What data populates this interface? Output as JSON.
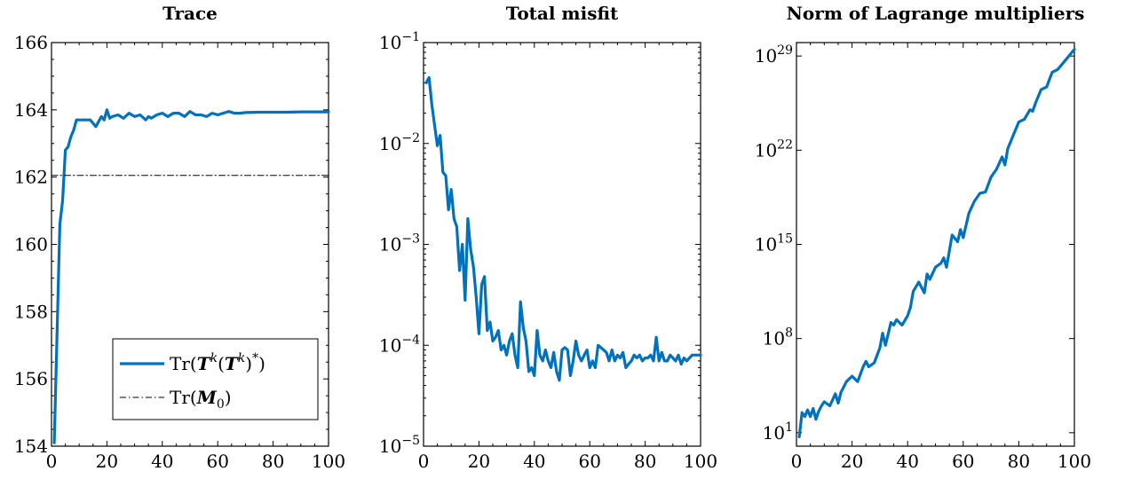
{
  "chart_data": [
    {
      "type": "line",
      "title": "Trace",
      "xlim": [
        0,
        100
      ],
      "ylim": [
        154,
        166
      ],
      "yscale": "linear",
      "x_ticks": [
        0,
        20,
        40,
        60,
        80,
        100
      ],
      "y_ticks": [
        154,
        156,
        158,
        160,
        162,
        164,
        166
      ],
      "legend": "bottom-right",
      "series": [
        {
          "name": "Tr(T^k(T^k)^*)",
          "color": "#0072BD",
          "style": "solid",
          "x": [
            1,
            2,
            3,
            4,
            5,
            6,
            7,
            8,
            9,
            10,
            12,
            14,
            16,
            18,
            19,
            20,
            21,
            22,
            24,
            26,
            28,
            30,
            32,
            34,
            35,
            36,
            38,
            40,
            42,
            44,
            46,
            48,
            50,
            52,
            54,
            56,
            58,
            60,
            62,
            64,
            66,
            68,
            70,
            75,
            80,
            85,
            90,
            95,
            100
          ],
          "y": [
            154.1,
            157.3,
            160.6,
            161.3,
            162.8,
            162.9,
            163.2,
            163.4,
            163.7,
            163.7,
            163.7,
            163.7,
            163.5,
            163.8,
            163.7,
            164.0,
            163.75,
            163.8,
            163.85,
            163.75,
            163.9,
            163.8,
            163.85,
            163.7,
            163.8,
            163.75,
            163.85,
            163.9,
            163.8,
            163.9,
            163.9,
            163.8,
            163.95,
            163.85,
            163.85,
            163.8,
            163.9,
            163.85,
            163.9,
            163.95,
            163.9,
            163.9,
            163.92,
            163.93,
            163.93,
            163.93,
            163.94,
            163.94,
            163.94
          ]
        },
        {
          "name": "Tr(M_0)",
          "color": "#000000",
          "style": "dashdot",
          "x": [
            0,
            100
          ],
          "y": [
            162.05,
            162.05
          ]
        }
      ]
    },
    {
      "type": "line",
      "title": "Total misfit",
      "xlim": [
        0,
        100
      ],
      "ylim": [
        1e-05,
        0.1
      ],
      "yscale": "log",
      "x_ticks": [
        0,
        20,
        40,
        60,
        80,
        100
      ],
      "series": [
        {
          "color": "#0072BD",
          "x": [
            1,
            2,
            3,
            4,
            5,
            6,
            7,
            8,
            9,
            10,
            11,
            12,
            13,
            14,
            15,
            16,
            17,
            18,
            19,
            20,
            21,
            22,
            23,
            24,
            25,
            26,
            27,
            28,
            29,
            30,
            31,
            32,
            33,
            34,
            35,
            36,
            37,
            38,
            39,
            40,
            41,
            42,
            43,
            44,
            45,
            46,
            47,
            48,
            49,
            50,
            51,
            52,
            53,
            54,
            55,
            56,
            57,
            58,
            59,
            60,
            61,
            62,
            63,
            64,
            65,
            66,
            67,
            68,
            69,
            70,
            71,
            72,
            73,
            74,
            75,
            76,
            77,
            78,
            79,
            80,
            81,
            82,
            83,
            84,
            85,
            86,
            87,
            88,
            89,
            90,
            91,
            92,
            93,
            94,
            95,
            96,
            97,
            98,
            99,
            100
          ],
          "y": [
            0.04,
            0.045,
            0.024,
            0.015,
            0.0095,
            0.012,
            0.0052,
            0.0048,
            0.0022,
            0.0035,
            0.0018,
            0.0015,
            0.00055,
            0.001,
            0.00028,
            0.0018,
            0.0009,
            0.0006,
            0.0003,
            0.00013,
            0.0004,
            0.00048,
            0.00014,
            0.00017,
            0.00011,
            0.00012,
            0.00014,
            9e-05,
            0.0001,
            8e-05,
            0.00011,
            0.00013,
            8e-05,
            6e-05,
            0.00027,
            0.00015,
            0.00011,
            5.5e-05,
            6e-05,
            5e-05,
            0.00014,
            8e-05,
            7e-05,
            9e-05,
            7e-05,
            6e-05,
            8.5e-05,
            5.5e-05,
            4.5e-05,
            9e-05,
            9.5e-05,
            9e-05,
            5e-05,
            7e-05,
            0.00011,
            8e-05,
            7e-05,
            8e-05,
            9e-05,
            6e-05,
            7e-05,
            6e-05,
            0.0001,
            9.5e-05,
            9e-05,
            8.5e-05,
            7e-05,
            9e-05,
            7e-05,
            8e-05,
            7.5e-05,
            8.5e-05,
            6e-05,
            6.5e-05,
            7e-05,
            8e-05,
            7.5e-05,
            8e-05,
            7e-05,
            7.5e-05,
            7.5e-05,
            8e-05,
            7e-05,
            0.00012,
            7e-05,
            8.5e-05,
            7e-05,
            7e-05,
            8e-05,
            7.5e-05,
            7e-05,
            8e-05,
            6.5e-05,
            7.5e-05,
            7e-05,
            7.5e-05,
            8e-05,
            8e-05,
            8e-05,
            8e-05
          ]
        }
      ]
    },
    {
      "type": "line",
      "title": "Norm of Lagrange multipliers",
      "xlim": [
        0,
        100
      ],
      "ylim_log10": [
        0,
        30
      ],
      "yscale": "log",
      "x_ticks": [
        0,
        20,
        40,
        60,
        80,
        100
      ],
      "y_ticks_log10": [
        1,
        8,
        15,
        22,
        29
      ],
      "series": [
        {
          "color": "#0072BD",
          "x": [
            1,
            2,
            3,
            4,
            5,
            6,
            7,
            8,
            9,
            10,
            12,
            14,
            15,
            16,
            18,
            20,
            22,
            24,
            25,
            26,
            28,
            30,
            31,
            32,
            34,
            35,
            36,
            38,
            40,
            41,
            42,
            44,
            46,
            47,
            48,
            50,
            52,
            53,
            54,
            56,
            58,
            59,
            60,
            62,
            64,
            66,
            68,
            70,
            72,
            74,
            75,
            76,
            78,
            80,
            82,
            84,
            85,
            86,
            88,
            90,
            92,
            94,
            96,
            98,
            100
          ],
          "y_log10": [
            0.7,
            2.5,
            2.2,
            2.7,
            2.2,
            2.8,
            2.0,
            2.6,
            3.0,
            3.3,
            3.0,
            3.9,
            3.2,
            4.0,
            4.8,
            5.2,
            4.8,
            5.9,
            6.3,
            5.9,
            6.2,
            7.3,
            8.4,
            7.5,
            9.2,
            9.0,
            9.4,
            9.0,
            9.7,
            10.3,
            11.5,
            12.2,
            11.4,
            12.8,
            12.4,
            13.3,
            13.6,
            14.0,
            13.3,
            15.7,
            15.2,
            16.1,
            15.5,
            17.3,
            18.2,
            18.8,
            18.9,
            20.0,
            20.6,
            21.5,
            20.9,
            22.1,
            23.1,
            24.1,
            24.3,
            25.0,
            24.9,
            25.5,
            26.5,
            26.7,
            27.8,
            28.0,
            28.5,
            29.0,
            29.5
          ]
        }
      ]
    }
  ]
}
